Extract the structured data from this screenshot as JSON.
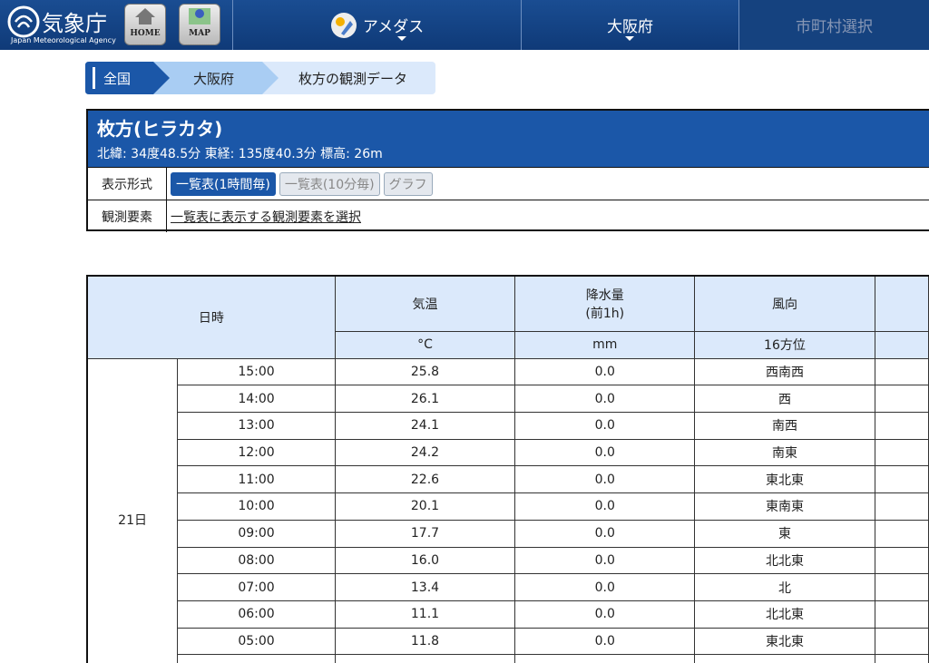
{
  "header": {
    "logo": "気象庁",
    "logo_sub": "Japan Meteorological Agency",
    "home": "HOME",
    "map": "MAP",
    "nav": [
      "アメダス",
      "大阪府",
      "市町村選択"
    ]
  },
  "breadcrumb": [
    "全国",
    "大阪府",
    "枚方の観測データ"
  ],
  "station": {
    "name": "枚方(ヒラカタ)",
    "info": "北緯: 34度48.5分 東経: 135度40.3分 標高: 26m",
    "format_label": "表示形式",
    "formats": [
      "一覧表(1時間毎)",
      "一覧表(10分毎)",
      "グラフ"
    ],
    "element_label": "観測要素",
    "element_link": "一覧表に表示する観測要素を選択"
  },
  "table": {
    "headers": [
      "日時",
      "気温",
      "降水量\n(前1h)",
      "風向"
    ],
    "units": [
      "°C",
      "mm",
      "16方位"
    ],
    "day": "21日",
    "rows": [
      [
        "15:00",
        "25.8",
        "0.0",
        "西南西"
      ],
      [
        "14:00",
        "26.1",
        "0.0",
        "西"
      ],
      [
        "13:00",
        "24.1",
        "0.0",
        "南西"
      ],
      [
        "12:00",
        "24.2",
        "0.0",
        "南東"
      ],
      [
        "11:00",
        "22.6",
        "0.0",
        "東北東"
      ],
      [
        "10:00",
        "20.1",
        "0.0",
        "東南東"
      ],
      [
        "09:00",
        "17.7",
        "0.0",
        "東"
      ],
      [
        "08:00",
        "16.0",
        "0.0",
        "北北東"
      ],
      [
        "07:00",
        "13.4",
        "0.0",
        "北"
      ],
      [
        "06:00",
        "11.1",
        "0.0",
        "北北東"
      ],
      [
        "05:00",
        "11.8",
        "0.0",
        "東北東"
      ]
    ]
  }
}
